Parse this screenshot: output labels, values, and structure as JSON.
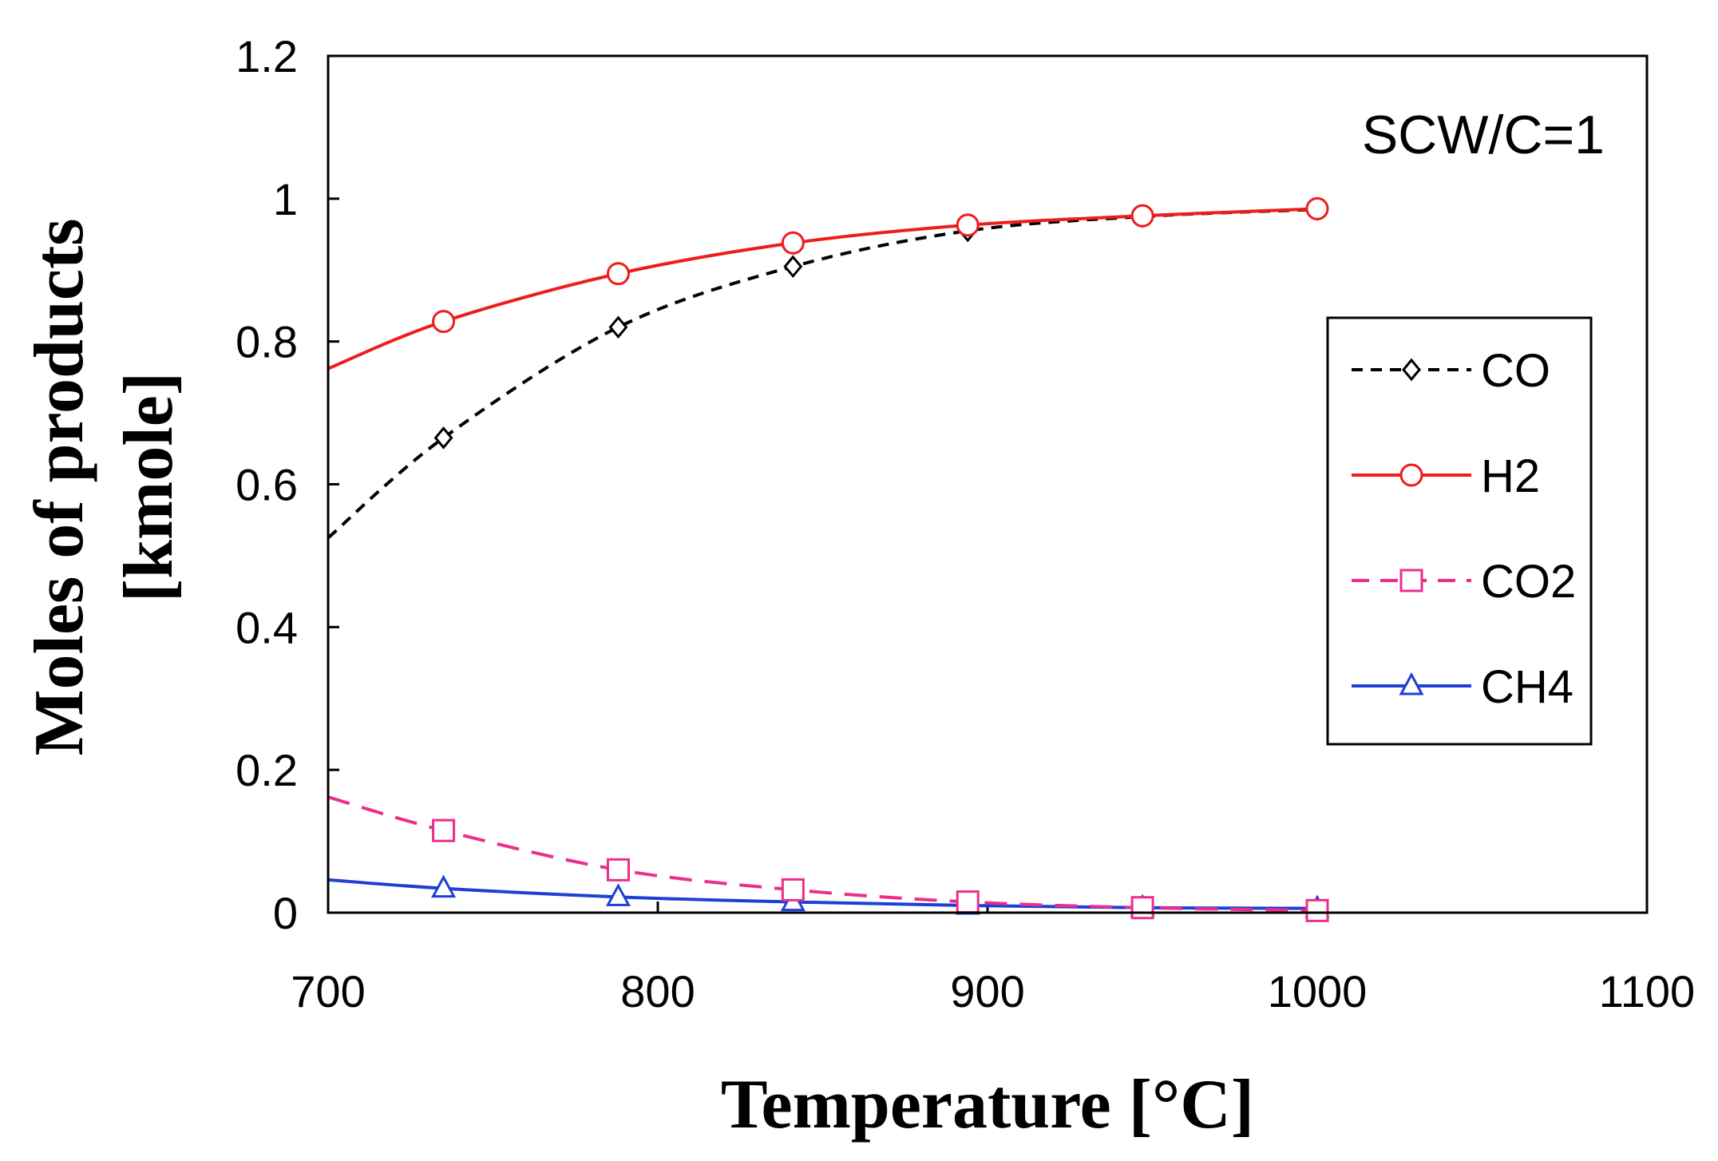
{
  "chart_data": {
    "type": "line",
    "title": "",
    "annotation": "SCW/C=1",
    "xlabel": "Temperature [°C]",
    "ylabel_line1": "Moles of products",
    "ylabel_line2": "[kmole]",
    "xlim": [
      700,
      1100
    ],
    "ylim": [
      0,
      1.2
    ],
    "x_ticks": [
      700,
      800,
      900,
      1000,
      1100
    ],
    "x_tick_labels": [
      "700",
      "800",
      "900",
      "1000",
      "1100"
    ],
    "y_ticks": [
      0,
      0.2,
      0.4,
      0.6,
      0.8,
      1.0,
      1.2
    ],
    "y_tick_labels": [
      "0",
      "0.2",
      "0.4",
      "0.6",
      "0.8",
      "1",
      "1.2"
    ],
    "legend_position": "right",
    "series": [
      {
        "name": "CO",
        "color": "#000000",
        "dashed": true,
        "marker": "diamond",
        "markers_x": [
          735,
          788,
          841,
          894,
          947,
          1000
        ],
        "markers_y": [
          0.665,
          0.82,
          0.905,
          0.955,
          0.975,
          0.985
        ],
        "curve_x": [
          700,
          735,
          788,
          841,
          894,
          947,
          1000
        ],
        "curve_y": [
          0.525,
          0.665,
          0.82,
          0.905,
          0.955,
          0.975,
          0.985
        ]
      },
      {
        "name": "H2",
        "color": "#ee1c1c",
        "dashed": false,
        "marker": "circle",
        "markers_x": [
          735,
          788,
          841,
          894,
          947,
          1000
        ],
        "markers_y": [
          0.828,
          0.895,
          0.938,
          0.963,
          0.976,
          0.986
        ],
        "curve_x": [
          700,
          735,
          788,
          841,
          894,
          947,
          1000
        ],
        "curve_y": [
          0.762,
          0.828,
          0.895,
          0.938,
          0.963,
          0.976,
          0.986
        ]
      },
      {
        "name": "CO2",
        "color": "#ec2d8e",
        "dashed": true,
        "marker": "square",
        "markers_x": [
          735,
          788,
          841,
          894,
          947,
          1000
        ],
        "markers_y": [
          0.115,
          0.06,
          0.032,
          0.015,
          0.007,
          0.003
        ],
        "curve_x": [
          700,
          735,
          788,
          841,
          894,
          947,
          1000
        ],
        "curve_y": [
          0.162,
          0.115,
          0.06,
          0.032,
          0.015,
          0.007,
          0.003
        ]
      },
      {
        "name": "CH4",
        "color": "#1d3fd6",
        "dashed": false,
        "marker": "triangle",
        "markers_x": [
          735,
          788,
          841,
          894,
          947,
          1000
        ],
        "markers_y": [
          0.034,
          0.022,
          0.015,
          0.01,
          0.007,
          0.006
        ],
        "curve_x": [
          700,
          735,
          788,
          841,
          894,
          947,
          1000
        ],
        "curve_y": [
          0.046,
          0.034,
          0.022,
          0.015,
          0.01,
          0.007,
          0.006
        ]
      }
    ]
  }
}
